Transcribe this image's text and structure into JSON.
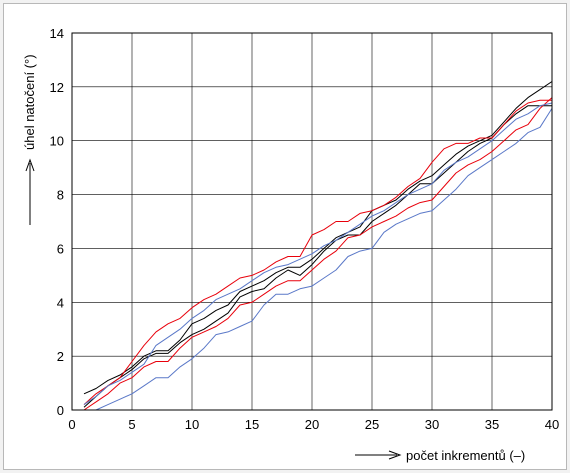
{
  "chart_data": {
    "type": "line",
    "title": "",
    "xlabel": "počet inkrementů (–)",
    "ylabel": "úhel natočení (°)",
    "xlim": [
      0,
      40
    ],
    "ylim": [
      0,
      14
    ],
    "xticks": [
      0,
      5,
      10,
      15,
      20,
      25,
      30,
      35,
      40
    ],
    "yticks": [
      0,
      2,
      4,
      6,
      8,
      10,
      12,
      14
    ],
    "grid": true,
    "legend": "none",
    "series": [
      {
        "color": "#000000",
        "x": [
          1,
          2,
          3,
          4,
          5,
          6,
          7,
          8,
          9,
          10,
          11,
          12,
          13,
          14,
          15,
          16,
          17,
          18,
          19,
          20,
          21,
          22,
          23,
          24,
          25,
          26,
          27,
          28,
          29,
          30,
          31,
          32,
          33,
          34,
          35,
          36,
          37,
          38,
          39,
          40
        ],
        "values": [
          0.6,
          0.8,
          1.1,
          1.3,
          1.6,
          2.0,
          2.2,
          2.2,
          2.6,
          3.2,
          3.4,
          3.7,
          3.9,
          4.4,
          4.6,
          4.8,
          5.1,
          5.3,
          5.3,
          5.6,
          6.0,
          6.4,
          6.6,
          6.8,
          7.4,
          7.6,
          7.8,
          8.2,
          8.5,
          8.7,
          9.1,
          9.5,
          9.8,
          10.0,
          10.2,
          10.7,
          11.2,
          11.6,
          11.9,
          12.2
        ]
      },
      {
        "color": "#000000",
        "x": [
          1,
          2,
          3,
          4,
          5,
          6,
          7,
          8,
          9,
          10,
          11,
          12,
          13,
          14,
          15,
          16,
          17,
          18,
          19,
          20,
          21,
          22,
          23,
          24,
          25,
          26,
          27,
          28,
          29,
          30,
          31,
          32,
          33,
          34,
          35,
          36,
          37,
          38,
          39,
          40
        ],
        "values": [
          0.1,
          0.5,
          0.9,
          1.2,
          1.5,
          1.9,
          2.1,
          2.1,
          2.5,
          2.8,
          3.0,
          3.3,
          3.6,
          4.2,
          4.4,
          4.5,
          4.9,
          5.2,
          5.0,
          5.4,
          5.9,
          6.3,
          6.5,
          6.5,
          7.0,
          7.3,
          7.6,
          8.0,
          8.4,
          8.4,
          8.8,
          9.2,
          9.6,
          9.9,
          10.1,
          10.6,
          11.0,
          11.3,
          11.3,
          11.3
        ]
      },
      {
        "color": "#e8000b",
        "x": [
          1,
          2,
          3,
          4,
          5,
          6,
          7,
          8,
          9,
          10,
          11,
          12,
          13,
          14,
          15,
          16,
          17,
          18,
          19,
          20,
          21,
          22,
          23,
          24,
          25,
          26,
          27,
          28,
          29,
          30,
          31,
          32,
          33,
          34,
          35,
          36,
          37,
          38,
          39,
          40
        ],
        "values": [
          0.2,
          0.6,
          0.9,
          1.2,
          1.8,
          2.4,
          2.9,
          3.2,
          3.4,
          3.8,
          4.1,
          4.3,
          4.6,
          4.9,
          5.0,
          5.2,
          5.5,
          5.7,
          5.7,
          6.5,
          6.7,
          7.0,
          7.0,
          7.3,
          7.4,
          7.6,
          7.9,
          8.3,
          8.6,
          9.2,
          9.7,
          9.9,
          9.9,
          10.1,
          10.1,
          10.6,
          11.1,
          11.4,
          11.5,
          11.5
        ]
      },
      {
        "color": "#e8000b",
        "x": [
          1,
          2,
          3,
          4,
          5,
          6,
          7,
          8,
          9,
          10,
          11,
          12,
          13,
          14,
          15,
          16,
          17,
          18,
          19,
          20,
          21,
          22,
          23,
          24,
          25,
          26,
          27,
          28,
          29,
          30,
          31,
          32,
          33,
          34,
          35,
          36,
          37,
          38,
          39,
          40
        ],
        "values": [
          0.0,
          0.3,
          0.6,
          1.0,
          1.2,
          1.6,
          1.8,
          1.8,
          2.3,
          2.7,
          2.9,
          3.1,
          3.4,
          3.9,
          4.0,
          4.3,
          4.6,
          4.8,
          4.8,
          5.2,
          5.6,
          5.9,
          6.4,
          6.5,
          6.8,
          7.0,
          7.2,
          7.5,
          7.7,
          7.8,
          8.3,
          8.8,
          9.1,
          9.3,
          9.6,
          10.0,
          10.4,
          10.6,
          11.2,
          11.6
        ]
      },
      {
        "color": "#5a78c8",
        "x": [
          1,
          2,
          3,
          4,
          5,
          6,
          7,
          8,
          9,
          10,
          11,
          12,
          13,
          14,
          15,
          16,
          17,
          18,
          19,
          20,
          21,
          22,
          23,
          24,
          25,
          26,
          27,
          28,
          29,
          30,
          31,
          32,
          33,
          34,
          35,
          36,
          37,
          38,
          39,
          40
        ],
        "values": [
          0.0,
          0.0,
          0.2,
          0.4,
          0.6,
          0.9,
          1.2,
          1.2,
          1.6,
          1.9,
          2.3,
          2.8,
          2.9,
          3.1,
          3.3,
          3.9,
          4.3,
          4.3,
          4.5,
          4.6,
          4.9,
          5.2,
          5.7,
          5.9,
          6.0,
          6.6,
          6.9,
          7.1,
          7.3,
          7.4,
          7.8,
          8.2,
          8.7,
          9.0,
          9.3,
          9.6,
          9.9,
          10.3,
          10.5,
          11.2
        ]
      },
      {
        "color": "#5a78c8",
        "x": [
          1,
          2,
          3,
          4,
          5,
          6,
          7,
          8,
          9,
          10,
          11,
          12,
          13,
          14,
          15,
          16,
          17,
          18,
          19,
          20,
          21,
          22,
          23,
          24,
          25,
          26,
          27,
          28,
          29,
          30,
          31,
          32,
          33,
          34,
          35,
          36,
          37,
          38,
          39,
          40
        ],
        "values": [
          0.2,
          0.5,
          0.9,
          1.1,
          1.4,
          1.7,
          2.4,
          2.7,
          3.0,
          3.4,
          3.7,
          4.1,
          4.3,
          4.5,
          4.8,
          5.1,
          5.3,
          5.4,
          5.6,
          5.8,
          6.1,
          6.3,
          6.6,
          6.9,
          7.2,
          7.4,
          7.7,
          8.0,
          8.2,
          8.4,
          8.9,
          9.2,
          9.4,
          9.7,
          10.0,
          10.4,
          10.8,
          11.0,
          11.3,
          11.4
        ]
      }
    ]
  }
}
